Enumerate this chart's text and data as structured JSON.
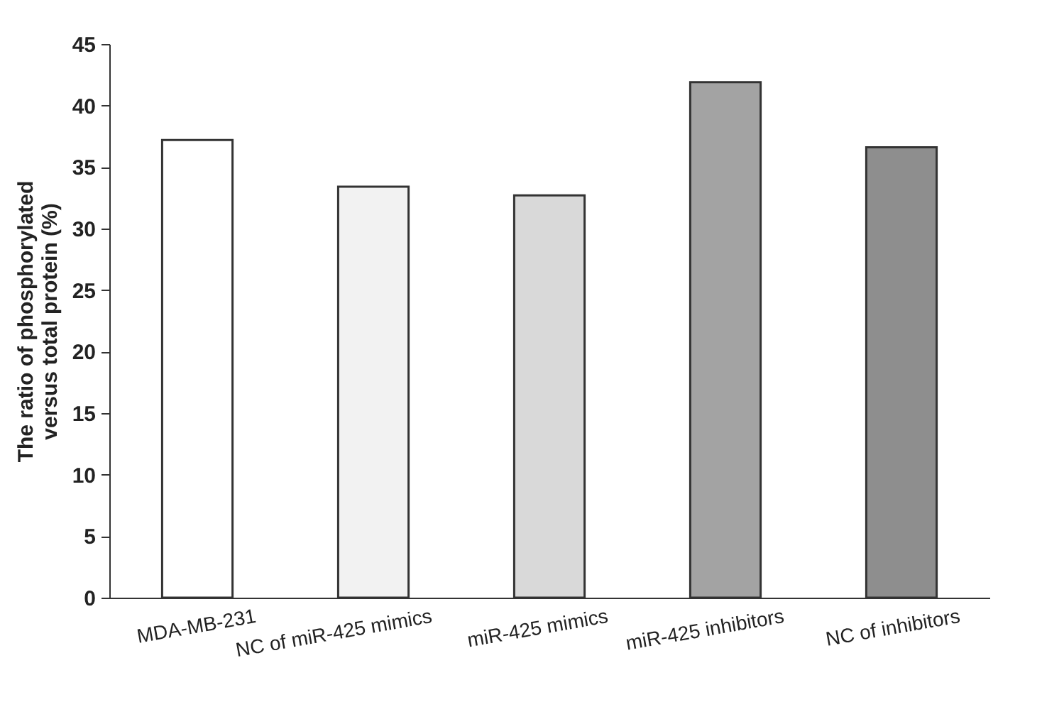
{
  "chart_data": {
    "type": "bar",
    "ylabel": "The ratio of phosphorylated\nversus total protein (%)",
    "categories": [
      "MDA-MB-231",
      "NC of miR-425 mimics",
      "miR-425 mimics",
      "miR-425 inhibitors",
      "NC of inhibitors"
    ],
    "values": [
      37.2,
      33.4,
      32.7,
      41.9,
      36.6
    ],
    "colors": [
      "#ffffff",
      "#f2f2f2",
      "#d9d9d9",
      "#a3a3a3",
      "#8e8e8e"
    ],
    "ylim": [
      0,
      45
    ],
    "yticks": [
      0,
      5,
      10,
      15,
      20,
      25,
      30,
      35,
      40,
      45
    ],
    "grid": false,
    "legend": false
  }
}
